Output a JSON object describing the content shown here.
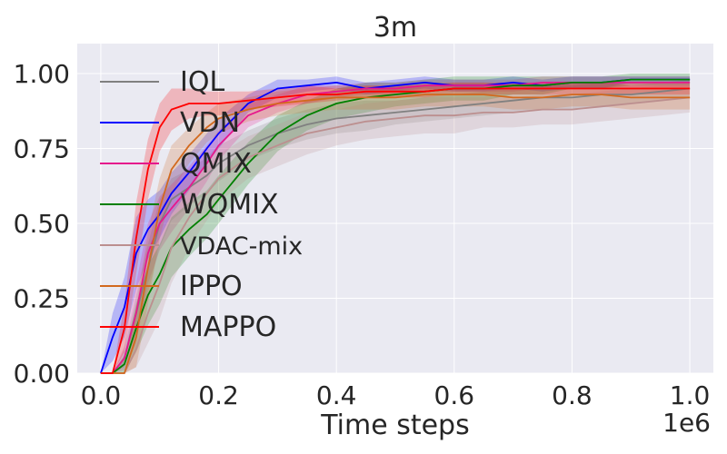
{
  "chart_data": {
    "type": "line",
    "title": "3m",
    "xlabel": "Time steps",
    "ylabel": "",
    "x_offset_label": "1e6",
    "xlim": [
      -0.04,
      1.04
    ],
    "ylim": [
      0.0,
      1.1
    ],
    "xticks": [
      0.0,
      0.2,
      0.4,
      0.6,
      0.8,
      1.0
    ],
    "xtick_labels": [
      "0.0",
      "0.2",
      "0.4",
      "0.6",
      "0.8",
      "1.0"
    ],
    "yticks": [
      0.0,
      0.25,
      0.5,
      0.75,
      1.0
    ],
    "ytick_labels": [
      "0.00",
      "0.25",
      "0.50",
      "0.75",
      "1.00"
    ],
    "grid": true,
    "style": "seaborn-darkgrid",
    "legend_position": "upper-left",
    "x": [
      0.0,
      0.02,
      0.04,
      0.06,
      0.08,
      0.1,
      0.12,
      0.15,
      0.18,
      0.2,
      0.25,
      0.3,
      0.35,
      0.4,
      0.45,
      0.5,
      0.55,
      0.6,
      0.65,
      0.7,
      0.75,
      0.8,
      0.85,
      0.9,
      0.95,
      1.0
    ],
    "series": [
      {
        "name": "IQL",
        "color": "#808080",
        "values": [
          0.0,
          0.0,
          0.05,
          0.2,
          0.35,
          0.5,
          0.58,
          0.62,
          0.66,
          0.7,
          0.76,
          0.8,
          0.83,
          0.85,
          0.86,
          0.87,
          0.88,
          0.89,
          0.9,
          0.91,
          0.92,
          0.92,
          0.93,
          0.93,
          0.94,
          0.95
        ],
        "band": [
          0.0,
          0.0,
          0.03,
          0.06,
          0.08,
          0.08,
          0.07,
          0.06,
          0.06,
          0.06,
          0.05,
          0.05,
          0.05,
          0.05,
          0.05,
          0.04,
          0.04,
          0.04,
          0.04,
          0.04,
          0.04,
          0.04,
          0.04,
          0.03,
          0.03,
          0.03
        ]
      },
      {
        "name": "VDN",
        "color": "#0000ff",
        "values": [
          0.0,
          0.12,
          0.22,
          0.4,
          0.48,
          0.53,
          0.6,
          0.67,
          0.75,
          0.8,
          0.9,
          0.95,
          0.96,
          0.97,
          0.95,
          0.96,
          0.97,
          0.96,
          0.96,
          0.97,
          0.96,
          0.97,
          0.97,
          0.98,
          0.98,
          0.98
        ],
        "band": [
          0.0,
          0.08,
          0.1,
          0.12,
          0.1,
          0.08,
          0.07,
          0.06,
          0.05,
          0.05,
          0.03,
          0.03,
          0.02,
          0.02,
          0.02,
          0.02,
          0.02,
          0.02,
          0.02,
          0.02,
          0.02,
          0.02,
          0.02,
          0.01,
          0.01,
          0.01
        ]
      },
      {
        "name": "QMIX",
        "color": "#e6198c",
        "values": [
          0.0,
          0.0,
          0.05,
          0.2,
          0.4,
          0.5,
          0.55,
          0.62,
          0.7,
          0.76,
          0.86,
          0.9,
          0.93,
          0.94,
          0.95,
          0.95,
          0.96,
          0.96,
          0.96,
          0.96,
          0.97,
          0.97,
          0.97,
          0.97,
          0.97,
          0.97
        ],
        "band": [
          0.0,
          0.0,
          0.04,
          0.1,
          0.1,
          0.09,
          0.08,
          0.07,
          0.06,
          0.05,
          0.04,
          0.03,
          0.03,
          0.02,
          0.02,
          0.02,
          0.02,
          0.02,
          0.02,
          0.02,
          0.02,
          0.02,
          0.02,
          0.02,
          0.02,
          0.02
        ]
      },
      {
        "name": "WQMIX",
        "color": "#008000",
        "values": [
          0.0,
          0.0,
          0.03,
          0.15,
          0.26,
          0.33,
          0.42,
          0.48,
          0.53,
          0.58,
          0.7,
          0.8,
          0.86,
          0.9,
          0.92,
          0.93,
          0.94,
          0.95,
          0.95,
          0.96,
          0.96,
          0.97,
          0.97,
          0.98,
          0.98,
          0.98
        ],
        "band": [
          0.0,
          0.0,
          0.03,
          0.08,
          0.1,
          0.1,
          0.1,
          0.09,
          0.08,
          0.08,
          0.07,
          0.06,
          0.05,
          0.05,
          0.05,
          0.04,
          0.04,
          0.04,
          0.04,
          0.03,
          0.03,
          0.02,
          0.02,
          0.02,
          0.02,
          0.02
        ]
      },
      {
        "name": "VDAC-mix",
        "color": "#bc8f8f",
        "values": [
          0.0,
          0.0,
          0.0,
          0.08,
          0.2,
          0.3,
          0.42,
          0.52,
          0.6,
          0.65,
          0.72,
          0.76,
          0.8,
          0.82,
          0.84,
          0.85,
          0.86,
          0.86,
          0.87,
          0.87,
          0.88,
          0.88,
          0.89,
          0.9,
          0.91,
          0.92
        ],
        "band": [
          0.0,
          0.0,
          0.0,
          0.06,
          0.1,
          0.12,
          0.12,
          0.1,
          0.09,
          0.08,
          0.07,
          0.07,
          0.07,
          0.06,
          0.06,
          0.06,
          0.06,
          0.06,
          0.05,
          0.05,
          0.05,
          0.05,
          0.05,
          0.05,
          0.05,
          0.05
        ]
      },
      {
        "name": "IPPO",
        "color": "#d2691e",
        "values": [
          0.0,
          0.0,
          0.0,
          0.12,
          0.35,
          0.55,
          0.68,
          0.76,
          0.82,
          0.85,
          0.88,
          0.9,
          0.91,
          0.92,
          0.92,
          0.92,
          0.93,
          0.93,
          0.93,
          0.92,
          0.92,
          0.93,
          0.93,
          0.92,
          0.92,
          0.92
        ],
        "band": [
          0.0,
          0.0,
          0.0,
          0.1,
          0.12,
          0.1,
          0.08,
          0.06,
          0.05,
          0.05,
          0.04,
          0.04,
          0.04,
          0.04,
          0.04,
          0.04,
          0.04,
          0.04,
          0.04,
          0.04,
          0.04,
          0.04,
          0.04,
          0.04,
          0.04,
          0.04
        ]
      },
      {
        "name": "MAPPO",
        "color": "#ff0000",
        "values": [
          0.0,
          0.0,
          0.15,
          0.45,
          0.68,
          0.82,
          0.88,
          0.9,
          0.9,
          0.9,
          0.91,
          0.92,
          0.93,
          0.93,
          0.94,
          0.94,
          0.94,
          0.95,
          0.95,
          0.95,
          0.95,
          0.95,
          0.95,
          0.95,
          0.95,
          0.95
        ],
        "band": [
          0.0,
          0.0,
          0.08,
          0.12,
          0.1,
          0.08,
          0.07,
          0.05,
          0.04,
          0.04,
          0.03,
          0.03,
          0.03,
          0.02,
          0.02,
          0.02,
          0.02,
          0.02,
          0.02,
          0.02,
          0.02,
          0.02,
          0.02,
          0.02,
          0.02,
          0.02
        ]
      }
    ]
  },
  "colors": {
    "plot_background": "#eaeaf2",
    "grid": "#ffffff",
    "text": "#262626"
  }
}
